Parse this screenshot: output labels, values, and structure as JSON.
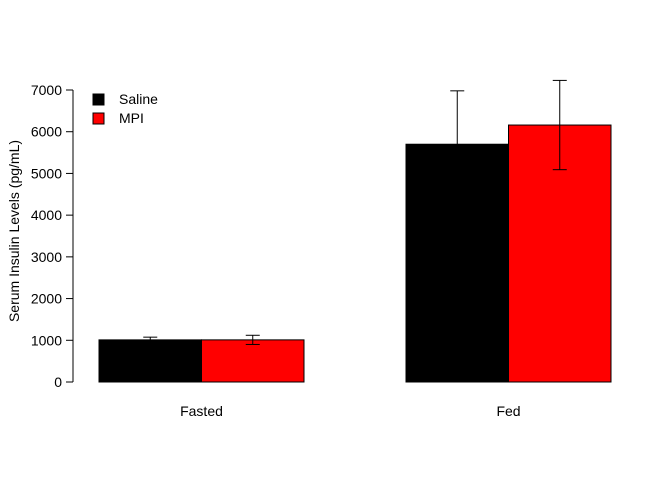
{
  "chart_data": {
    "type": "bar",
    "title": "",
    "xlabel": "",
    "ylabel": "Serum Insulin Levels (pg/mL)",
    "ylim": [
      0,
      7000
    ],
    "yticks": [
      0,
      1000,
      2000,
      3000,
      4000,
      5000,
      6000,
      7000
    ],
    "categories": [
      "Fasted",
      "Fed"
    ],
    "series": [
      {
        "name": "Saline",
        "color": "#000000",
        "values": [
          1010,
          5700
        ],
        "error": [
          65,
          1280
        ]
      },
      {
        "name": "MPI",
        "color": "#ff0000",
        "values": [
          1010,
          6160
        ],
        "error": [
          110,
          1070
        ]
      }
    ],
    "legend": {
      "position": "top-left"
    },
    "grid": false
  }
}
